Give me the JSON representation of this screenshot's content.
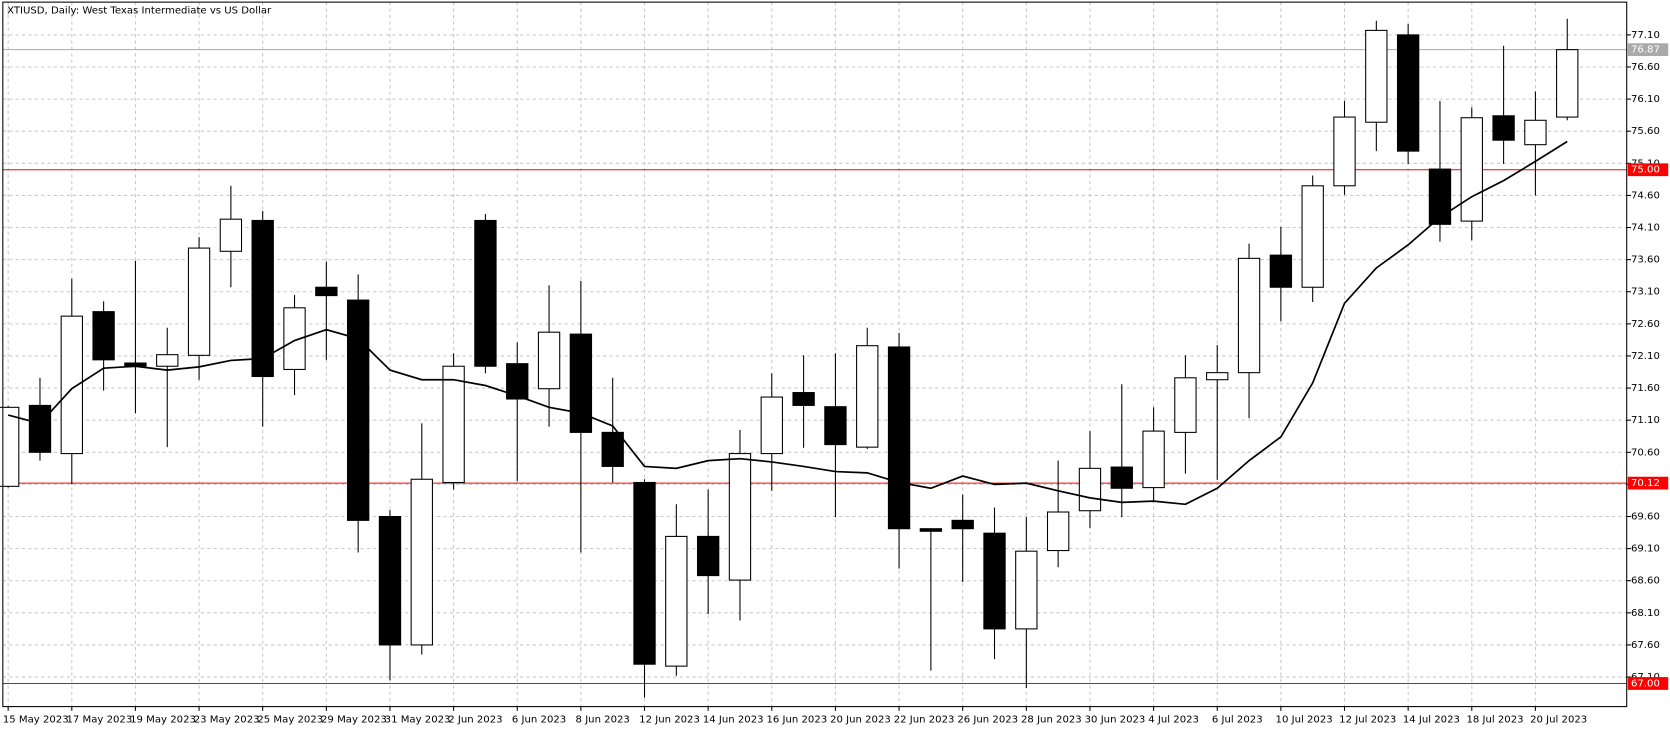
{
  "chart_data": {
    "type": "candlestick",
    "title": "XTIUSD, Daily:  West Texas Intermediate vs US Dollar",
    "categories": [
      "15 May 2023",
      null,
      "17 May 2023",
      null,
      "19 May 2023",
      null,
      "23 May 2023",
      null,
      "25 May 2023",
      null,
      "29 May 2023",
      null,
      "31 May 2023",
      null,
      "2 Jun 2023",
      null,
      "6 Jun 2023",
      null,
      "8 Jun 2023",
      null,
      "12 Jun 2023",
      null,
      "14 Jun 2023",
      null,
      "16 Jun 2023",
      null,
      "20 Jun 2023",
      null,
      "22 Jun 2023",
      null,
      "26 Jun 2023",
      null,
      "28 Jun 2023",
      null,
      "30 Jun 2023",
      null,
      "4 Jul 2023",
      null,
      "6 Jul 2023",
      null,
      "10 Jul 2023",
      null,
      "12 Jul 2023",
      null,
      "14 Jul 2023",
      null,
      "18 Jul 2023",
      null,
      "20 Jul 2023",
      null
    ],
    "open": [
      70.07,
      71.33,
      70.58,
      72.79,
      71.99,
      71.94,
      72.11,
      73.73,
      74.21,
      71.89,
      73.17,
      72.97,
      69.6,
      67.6,
      70.13,
      74.21,
      71.98,
      71.59,
      72.44,
      70.91,
      70.13,
      67.27,
      69.29,
      68.61,
      70.58,
      71.53,
      71.31,
      70.68,
      72.24,
      69.41,
      69.54,
      69.34,
      67.85,
      69.07,
      69.69,
      70.37,
      70.05,
      70.91,
      71.73,
      71.84,
      73.67,
      73.17,
      74.75,
      75.74,
      77.1,
      75.01,
      74.2,
      75.84,
      75.39,
      75.82
    ],
    "high": [
      71.32,
      71.76,
      73.3,
      72.95,
      73.58,
      72.54,
      73.95,
      74.75,
      74.36,
      73.05,
      73.57,
      73.37,
      69.7,
      71.05,
      72.14,
      74.31,
      72.31,
      73.2,
      73.27,
      71.76,
      70.18,
      69.79,
      70.02,
      70.95,
      71.83,
      72.11,
      72.14,
      72.54,
      72.46,
      69.41,
      69.94,
      69.74,
      69.59,
      70.47,
      70.93,
      71.66,
      71.3,
      72.11,
      72.27,
      73.85,
      74.11,
      74.91,
      76.07,
      77.32,
      77.27,
      76.07,
      75.97,
      76.93,
      76.22,
      77.35
    ],
    "low": [
      70.05,
      70.47,
      70.1,
      71.56,
      71.21,
      70.68,
      71.73,
      73.17,
      71.0,
      71.49,
      72.04,
      69.04,
      67.05,
      67.45,
      70.02,
      71.83,
      70.15,
      71.0,
      69.04,
      70.13,
      66.78,
      67.12,
      68.08,
      67.98,
      70.0,
      70.67,
      69.59,
      70.65,
      68.79,
      67.2,
      68.58,
      67.38,
      66.93,
      68.81,
      69.42,
      69.59,
      69.84,
      70.27,
      70.17,
      71.13,
      72.64,
      72.94,
      74.61,
      75.29,
      75.09,
      73.88,
      73.9,
      75.09,
      74.6,
      75.77
    ],
    "close": [
      71.3,
      70.6,
      72.72,
      72.04,
      71.94,
      72.12,
      73.78,
      74.23,
      71.78,
      72.85,
      73.04,
      69.54,
      67.6,
      70.18,
      71.94,
      71.94,
      71.43,
      72.47,
      70.91,
      70.38,
      67.3,
      69.29,
      68.68,
      70.58,
      71.46,
      71.33,
      70.72,
      72.26,
      69.41,
      69.37,
      69.41,
      67.85,
      69.06,
      69.67,
      70.35,
      70.04,
      70.93,
      71.76,
      71.84,
      73.62,
      73.17,
      74.75,
      75.82,
      77.17,
      75.29,
      74.15,
      75.81,
      75.46,
      75.77,
      76.87
    ],
    "up_color": "#ffffff",
    "down_color": "#000000",
    "ma": {
      "color": "#000000",
      "values": [
        71.18,
        71.05,
        71.59,
        71.91,
        71.94,
        71.88,
        71.93,
        72.03,
        72.06,
        72.34,
        72.51,
        72.37,
        71.88,
        71.73,
        71.73,
        71.64,
        71.48,
        71.3,
        71.21,
        71.01,
        70.38,
        70.35,
        70.47,
        70.5,
        70.45,
        70.38,
        70.3,
        70.28,
        70.13,
        70.04,
        70.23,
        70.1,
        70.12,
        70.0,
        69.89,
        69.82,
        69.84,
        69.79,
        70.04,
        70.47,
        70.84,
        71.68,
        72.92,
        73.47,
        73.83,
        74.26,
        74.58,
        74.83,
        75.13,
        75.44
      ]
    },
    "levels": [
      {
        "value": 75.0,
        "label": "75.00"
      },
      {
        "value": 70.12,
        "label": "70.12"
      },
      {
        "value": 67.0,
        "label": "67.00"
      }
    ],
    "level_color": "#ff0000",
    "bid": {
      "value": 76.87,
      "label": "76.87"
    },
    "bid_color": "#a9a9a9",
    "ylim": [
      66.64,
      77.61
    ],
    "yticks": [
      {
        "value": 77.1,
        "label": "77.10"
      },
      {
        "value": 76.6,
        "label": "76.60"
      },
      {
        "value": 76.1,
        "label": "76.10"
      },
      {
        "value": 75.6,
        "label": "75.60"
      },
      {
        "value": 75.1,
        "label": "75.10"
      },
      {
        "value": 74.6,
        "label": "74.60"
      },
      {
        "value": 74.1,
        "label": "74.10"
      },
      {
        "value": 73.6,
        "label": "73.60"
      },
      {
        "value": 73.1,
        "label": "73.10"
      },
      {
        "value": 72.6,
        "label": "72.60"
      },
      {
        "value": 72.1,
        "label": "72.10"
      },
      {
        "value": 71.6,
        "label": "71.60"
      },
      {
        "value": 71.1,
        "label": "71.10"
      },
      {
        "value": 70.6,
        "label": "70.60"
      },
      {
        "value": 70.1,
        "label": "70.10"
      },
      {
        "value": 69.6,
        "label": "69.60"
      },
      {
        "value": 69.1,
        "label": "69.10"
      },
      {
        "value": 68.6,
        "label": "68.60"
      },
      {
        "value": 68.1,
        "label": "68.10"
      },
      {
        "value": 67.6,
        "label": "67.60"
      },
      {
        "value": 67.1,
        "label": "67.10"
      }
    ],
    "grid": true
  }
}
